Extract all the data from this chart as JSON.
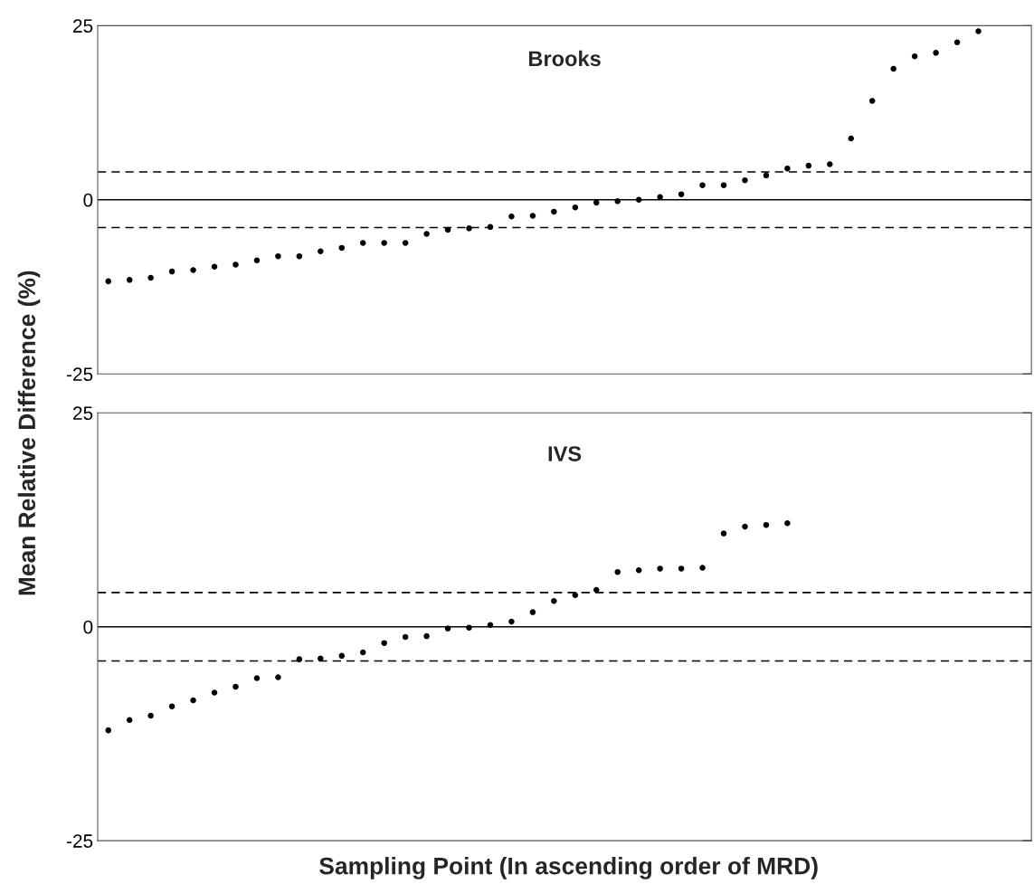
{
  "chart_data": [
    {
      "type": "scatter",
      "title": "Brooks",
      "ylabel": "Mean Relative Difference (%)",
      "categories": [
        null,
        null,
        null,
        null,
        null,
        null,
        null,
        null,
        null,
        null,
        null,
        null,
        null,
        null,
        null,
        null,
        null,
        null,
        null,
        null,
        null,
        null,
        null,
        null,
        null,
        null,
        null,
        null,
        null,
        null,
        null,
        null,
        null,
        null,
        null,
        null,
        null,
        null,
        null,
        null,
        null,
        null,
        null,
        null
      ],
      "ylim": [
        -25,
        25
      ],
      "yticks": [
        -25,
        0,
        25
      ],
      "marker": "circle",
      "grid": false,
      "legend": false,
      "series": [
        {
          "color": "#000000",
          "values": [
            -11.7,
            -11.5,
            -11.2,
            -10.3,
            -10.1,
            -9.6,
            -9.3,
            -8.7,
            -8.1,
            -8.1,
            -7.4,
            -6.9,
            -6.2,
            -6.2,
            -6.2,
            -4.9,
            -4.3,
            -4.1,
            -3.9,
            -2.4,
            -2.3,
            -1.7,
            -1.1,
            -0.4,
            -0.2,
            0.0,
            0.4,
            0.8,
            2.1,
            2.1,
            2.8,
            3.5,
            4.5,
            4.9,
            5.1,
            8.8,
            14.2,
            18.8,
            20.6,
            21.1,
            22.6,
            24.2,
            null,
            null
          ]
        }
      ],
      "ref_lines": [
        {
          "axis": "y",
          "value": 0,
          "color": "#000000",
          "line_style": "solid"
        },
        {
          "axis": "y",
          "value": 4,
          "color": "#000000",
          "line_style": "dashed"
        },
        {
          "axis": "y",
          "value": -4,
          "color": "#000000",
          "line_style": "dashed"
        }
      ]
    },
    {
      "type": "scatter",
      "title": "IVS",
      "xlabel": "Sampling Point (In ascending order of MRD)",
      "categories": [
        null,
        null,
        null,
        null,
        null,
        null,
        null,
        null,
        null,
        null,
        null,
        null,
        null,
        null,
        null,
        null,
        null,
        null,
        null,
        null,
        null,
        null,
        null,
        null,
        null,
        null,
        null,
        null,
        null,
        null,
        null,
        null,
        null,
        null,
        null,
        null,
        null,
        null,
        null,
        null,
        null,
        null,
        null,
        null
      ],
      "ylim": [
        -25,
        25
      ],
      "yticks": [
        -25,
        0,
        25
      ],
      "marker": "circle",
      "grid": false,
      "legend": false,
      "series": [
        {
          "color": "#000000",
          "values": [
            -12.1,
            -10.9,
            -10.4,
            -9.3,
            -8.6,
            -7.7,
            -7.0,
            -6.0,
            -5.9,
            -3.8,
            -3.7,
            -3.4,
            -3.0,
            -1.9,
            -1.2,
            -1.1,
            -0.2,
            -0.1,
            0.2,
            0.6,
            1.7,
            3.0,
            3.7,
            4.3,
            6.4,
            6.6,
            6.8,
            6.8,
            6.9,
            10.9,
            11.7,
            11.9,
            12.1,
            null,
            null,
            null,
            null,
            null,
            null,
            null,
            null,
            null,
            null,
            null
          ]
        }
      ],
      "ref_lines": [
        {
          "axis": "y",
          "value": 0,
          "color": "#000000",
          "line_style": "solid"
        },
        {
          "axis": "y",
          "value": 4,
          "color": "#000000",
          "line_style": "dashed"
        },
        {
          "axis": "y",
          "value": -4,
          "color": "#000000",
          "line_style": "dashed"
        }
      ]
    }
  ]
}
